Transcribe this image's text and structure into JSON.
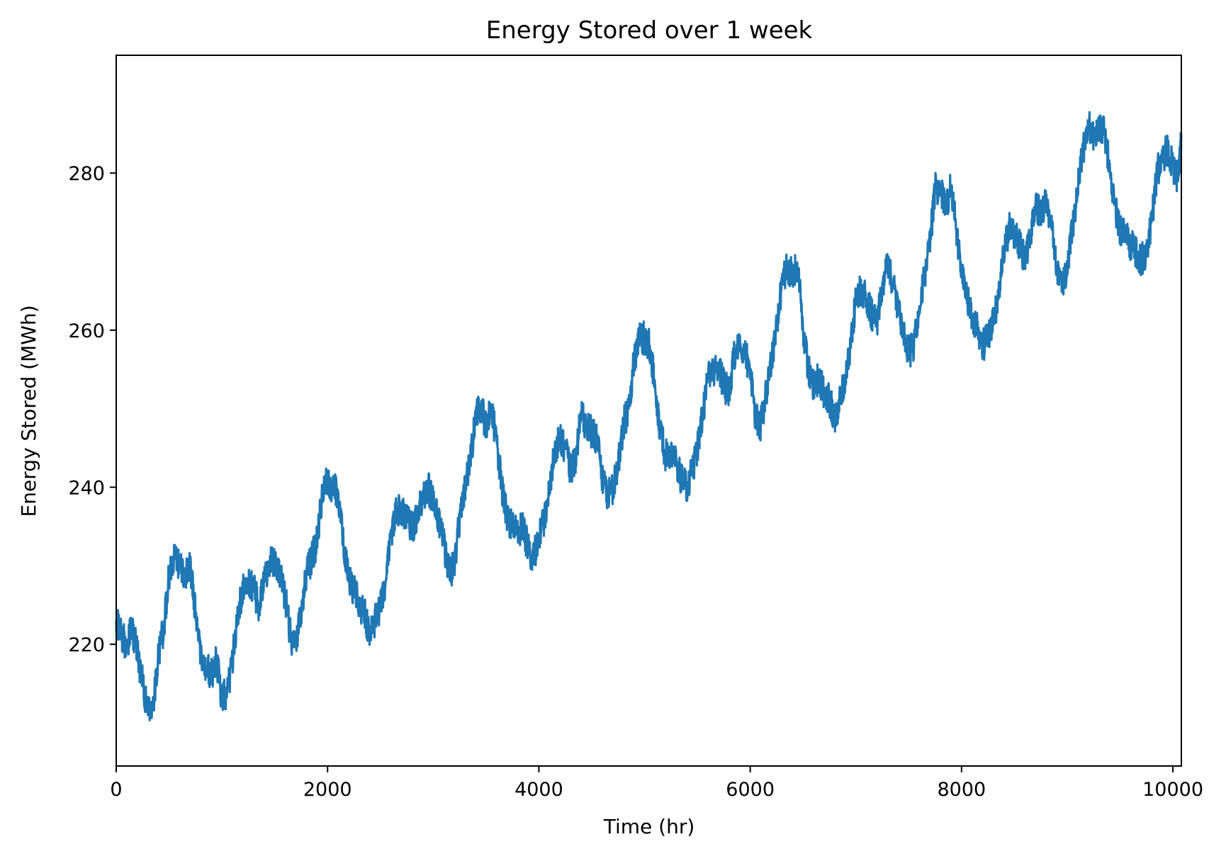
{
  "chart_data": {
    "type": "line",
    "title": "Energy Stored over 1 week",
    "xlabel": "Time (hr)",
    "ylabel": "Energy Stored (MWh)",
    "xlim": [
      0,
      10080
    ],
    "ylim": [
      204.5,
      295
    ],
    "xticks": [
      0,
      2000,
      4000,
      6000,
      8000,
      10000
    ],
    "yticks": [
      220,
      240,
      260,
      280
    ],
    "xtick_labels": [
      "0",
      "2000",
      "4000",
      "6000",
      "8000",
      "10000"
    ],
    "ytick_labels": [
      "220",
      "240",
      "260",
      "280"
    ],
    "grid": false,
    "legend": "none",
    "series": [
      {
        "color": "#1f77b4",
        "x": [
          0,
          50,
          100,
          150,
          200,
          250,
          300,
          350,
          400,
          450,
          500,
          550,
          600,
          650,
          700,
          750,
          800,
          850,
          900,
          950,
          1000,
          1050,
          1100,
          1150,
          1200,
          1250,
          1300,
          1350,
          1400,
          1450,
          1500,
          1550,
          1600,
          1650,
          1700,
          1750,
          1800,
          1850,
          1900,
          1950,
          2000,
          2050,
          2100,
          2150,
          2200,
          2250,
          2300,
          2350,
          2400,
          2450,
          2500,
          2550,
          2600,
          2650,
          2700,
          2750,
          2800,
          2850,
          2900,
          2950,
          3000,
          3050,
          3100,
          3150,
          3200,
          3250,
          3300,
          3350,
          3400,
          3450,
          3500,
          3550,
          3600,
          3650,
          3700,
          3750,
          3800,
          3850,
          3900,
          3950,
          4000,
          4050,
          4100,
          4150,
          4200,
          4250,
          4300,
          4350,
          4400,
          4450,
          4500,
          4550,
          4600,
          4650,
          4700,
          4750,
          4800,
          4850,
          4900,
          4950,
          5000,
          5050,
          5100,
          5150,
          5200,
          5250,
          5300,
          5350,
          5400,
          5450,
          5500,
          5550,
          5600,
          5650,
          5700,
          5750,
          5800,
          5850,
          5900,
          5950,
          6000,
          6050,
          6100,
          6150,
          6200,
          6250,
          6300,
          6350,
          6400,
          6450,
          6500,
          6550,
          6600,
          6650,
          6700,
          6750,
          6800,
          6850,
          6900,
          6950,
          7000,
          7050,
          7100,
          7150,
          7200,
          7250,
          7300,
          7350,
          7400,
          7450,
          7500,
          7550,
          7600,
          7650,
          7700,
          7750,
          7800,
          7850,
          7900,
          7950,
          8000,
          8050,
          8100,
          8150,
          8200,
          8250,
          8300,
          8350,
          8400,
          8450,
          8500,
          8550,
          8600,
          8650,
          8700,
          8750,
          8800,
          8850,
          8900,
          8950,
          9000,
          9050,
          9100,
          9150,
          9200,
          9250,
          9300,
          9350,
          9400,
          9450,
          9500,
          9550,
          9600,
          9650,
          9700,
          9750,
          9800,
          9850,
          9900,
          9950,
          10000,
          10050,
          10080
        ],
        "y": [
          223,
          221,
          220,
          222,
          219,
          215,
          211,
          212,
          219,
          222,
          229,
          231,
          230,
          229,
          230,
          224,
          218,
          217,
          216,
          218,
          213,
          214,
          218,
          224,
          227,
          228,
          227,
          225,
          228,
          230,
          231,
          229,
          226,
          221,
          220,
          224,
          229,
          231,
          233,
          239,
          241,
          240,
          239,
          233,
          228,
          227,
          225,
          224,
          221,
          223,
          225,
          228,
          234,
          237,
          237,
          236,
          235,
          236,
          239,
          240,
          238,
          236,
          233,
          229,
          230,
          236,
          240,
          243,
          249,
          250,
          248,
          250,
          246,
          240,
          236,
          235,
          234,
          235,
          232,
          231,
          234,
          236,
          240,
          245,
          246,
          245,
          242,
          244,
          249,
          248,
          247,
          246,
          241,
          239,
          240,
          243,
          248,
          250,
          256,
          259,
          259,
          258,
          253,
          247,
          244,
          244,
          243,
          241,
          240,
          242,
          245,
          249,
          254,
          255,
          255,
          253,
          252,
          257,
          258,
          257,
          255,
          249,
          248,
          252,
          256,
          260,
          266,
          268,
          267,
          268,
          260,
          255,
          253,
          254,
          252,
          251,
          249,
          251,
          254,
          258,
          264,
          265,
          264,
          262,
          261,
          266,
          268,
          266,
          263,
          260,
          257,
          258,
          263,
          267,
          271,
          278,
          278,
          276,
          278,
          273,
          267,
          264,
          262,
          260,
          258,
          259,
          261,
          264,
          270,
          273,
          272,
          271,
          269,
          272,
          276,
          275,
          276,
          273,
          268,
          266,
          268,
          273,
          278,
          283,
          286,
          285,
          286,
          285,
          281,
          276,
          273,
          272,
          271,
          270,
          269,
          270,
          274,
          280,
          282,
          283,
          281,
          279,
          285
        ]
      }
    ]
  }
}
